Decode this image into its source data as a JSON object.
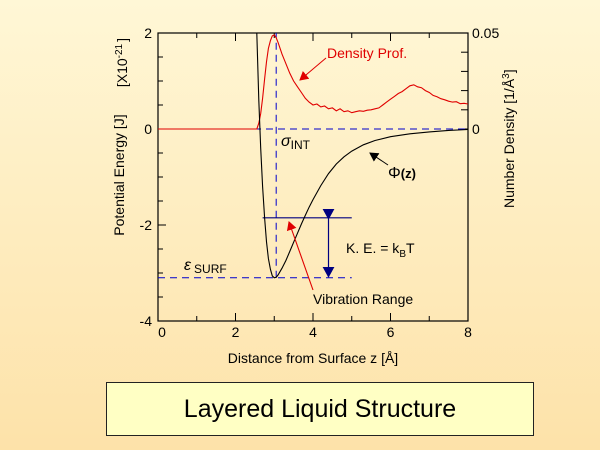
{
  "slide": {
    "title": "Layered Liquid Structure",
    "background_top": "#fff7d6",
    "background_bottom": "#fde2a9",
    "title_box_fill": "#ffffc4"
  },
  "chart_data": {
    "type": "line",
    "title": "Layered Liquid Structure",
    "xlabel": "Distance from Surface z [Å]",
    "ylabel_left": "Potential Energy [J]",
    "ylabel_left_unit": "[X10",
    "ylabel_left_exp": "-21",
    "ylabel_left_unit_close": "]",
    "ylabel_right": "Number Density [1/Å",
    "ylabel_right_exp": "3",
    "ylabel_right_close": "]",
    "xlim": [
      0,
      8
    ],
    "ylim_left": [
      -4,
      2
    ],
    "ylim_right": [
      0,
      0.05
    ],
    "x_ticks": [
      "0",
      "2",
      "4",
      "6",
      "8"
    ],
    "y_left_ticks": [
      "2",
      "0",
      "-2",
      "-4"
    ],
    "y_right_ticks": [
      "0.05",
      "0"
    ],
    "series": [
      {
        "name": "Φ(z)",
        "axis": "left",
        "color": "#000000",
        "x": [
          2.55,
          2.6,
          2.65,
          2.7,
          2.75,
          2.8,
          2.85,
          2.9,
          2.95,
          3.0,
          3.05,
          3.1,
          3.2,
          3.3,
          3.4,
          3.5,
          3.6,
          3.7,
          3.8,
          3.9,
          4.0,
          4.2,
          4.4,
          4.6,
          4.8,
          5.0,
          5.3,
          5.6,
          6.0,
          6.5,
          7.0,
          7.5,
          8.0
        ],
        "values": [
          2.0,
          0.6,
          -0.4,
          -1.2,
          -1.85,
          -2.35,
          -2.7,
          -2.92,
          -3.06,
          -3.1,
          -3.09,
          -3.04,
          -2.9,
          -2.74,
          -2.55,
          -2.36,
          -2.17,
          -1.98,
          -1.8,
          -1.63,
          -1.47,
          -1.18,
          -0.93,
          -0.73,
          -0.58,
          -0.46,
          -0.33,
          -0.24,
          -0.16,
          -0.1,
          -0.06,
          -0.03,
          -0.01
        ]
      },
      {
        "name": "Density Prof.",
        "axis": "right",
        "color": "#e00000",
        "x": [
          0.0,
          2.55,
          2.6,
          2.65,
          2.7,
          2.75,
          2.8,
          2.85,
          2.9,
          2.95,
          3.0,
          3.05,
          3.1,
          3.15,
          3.2,
          3.3,
          3.4,
          3.5,
          3.6,
          3.7,
          3.8,
          3.9,
          4.0,
          4.1,
          4.2,
          4.3,
          4.4,
          4.5,
          4.6,
          4.7,
          4.8,
          4.9,
          5.0,
          5.1,
          5.2,
          5.3,
          5.4,
          5.5,
          5.6,
          5.7,
          5.8,
          5.9,
          6.0,
          6.1,
          6.2,
          6.3,
          6.4,
          6.5,
          6.6,
          6.7,
          6.8,
          6.9,
          7.0,
          7.1,
          7.2,
          7.3,
          7.4,
          7.5,
          7.6,
          7.7,
          7.8,
          7.9,
          8.0
        ],
        "values": [
          0.0,
          0.0,
          0.003,
          0.008,
          0.016,
          0.026,
          0.035,
          0.042,
          0.046,
          0.0485,
          0.049,
          0.0475,
          0.045,
          0.042,
          0.039,
          0.034,
          0.029,
          0.025,
          0.022,
          0.019,
          0.016,
          0.014,
          0.0125,
          0.013,
          0.0115,
          0.012,
          0.0105,
          0.011,
          0.0095,
          0.0105,
          0.009,
          0.0095,
          0.0085,
          0.009,
          0.0095,
          0.0092,
          0.0098,
          0.01,
          0.0105,
          0.011,
          0.0125,
          0.014,
          0.0155,
          0.017,
          0.0185,
          0.0195,
          0.021,
          0.0225,
          0.023,
          0.022,
          0.0215,
          0.02,
          0.019,
          0.0175,
          0.0168,
          0.0158,
          0.0152,
          0.0145,
          0.014,
          0.0142,
          0.0132,
          0.0134,
          0.013
        ]
      }
    ],
    "reference_lines": [
      {
        "name": "zero-line",
        "type": "horizontal",
        "value": 0,
        "color": "#0000cc",
        "style": "dashed"
      },
      {
        "name": "surf-line",
        "type": "horizontal",
        "value": -3.1,
        "x_range": [
          0,
          5.0
        ],
        "color": "#0000cc",
        "style": "dashed"
      },
      {
        "name": "int-line",
        "type": "vertical",
        "value": 3.05,
        "y_range": [
          -3.1,
          2.0
        ],
        "color": "#0000cc",
        "style": "dashed"
      },
      {
        "name": "ke-line",
        "type": "horizontal",
        "value": -1.85,
        "x_range": [
          2.7,
          5.0
        ],
        "color": "#000080",
        "style": "solid"
      }
    ],
    "annotations": {
      "density_label": "Density Prof.",
      "sigma_symbol": "σ",
      "sigma_sub": "INT",
      "phi_symbol": "Φ",
      "phi_arg": "(z)",
      "epsilon_symbol": "ε",
      "epsilon_sub": "SURF",
      "ke_label": "K. E. = k",
      "ke_sub": "B",
      "ke_tail": "T",
      "vibration_label": "Vibration Range"
    }
  }
}
